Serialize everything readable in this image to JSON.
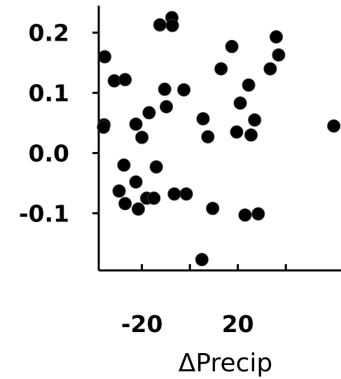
{
  "chart_data": {
    "type": "scatter",
    "title": "",
    "xlabel": "ΔPrecip",
    "ylabel": "",
    "xlim": [
      -38,
      63
    ],
    "ylim": [
      -0.195,
      0.245
    ],
    "x_ticks": [
      -20,
      0,
      20,
      40
    ],
    "x_tick_labels": [
      "-20",
      "",
      "20",
      ""
    ],
    "y_ticks": [
      -0.1,
      0.0,
      0.1,
      0.2
    ],
    "y_tick_labels": [
      "-0.1",
      "0.0",
      "0.1",
      "0.2"
    ],
    "grid": false,
    "legend": "none",
    "marker_color": "#000000",
    "series": [
      {
        "points": [
          {
            "x": -35.5,
            "y": 0.16
          },
          {
            "x": -31.5,
            "y": 0.12
          },
          {
            "x": -27.0,
            "y": 0.122
          },
          {
            "x": -35.8,
            "y": 0.047
          },
          {
            "x": -36.0,
            "y": 0.043
          },
          {
            "x": -22.5,
            "y": 0.048
          },
          {
            "x": -20.0,
            "y": 0.026
          },
          {
            "x": -17.0,
            "y": 0.067
          },
          {
            "x": -12.5,
            "y": 0.213
          },
          {
            "x": -7.5,
            "y": 0.225
          },
          {
            "x": -7.3,
            "y": 0.212
          },
          {
            "x": -10.5,
            "y": 0.106
          },
          {
            "x": -9.8,
            "y": 0.077
          },
          {
            "x": -2.5,
            "y": 0.105
          },
          {
            "x": -27.5,
            "y": -0.02
          },
          {
            "x": -29.5,
            "y": -0.063
          },
          {
            "x": -27.0,
            "y": -0.084
          },
          {
            "x": -22.5,
            "y": -0.048
          },
          {
            "x": -21.5,
            "y": -0.093
          },
          {
            "x": -18.0,
            "y": -0.075
          },
          {
            "x": -15.0,
            "y": -0.075
          },
          {
            "x": -14.0,
            "y": -0.023
          },
          {
            "x": -6.5,
            "y": -0.068
          },
          {
            "x": -1.5,
            "y": -0.068
          },
          {
            "x": 5.0,
            "y": -0.177
          },
          {
            "x": 5.5,
            "y": 0.057
          },
          {
            "x": 7.5,
            "y": 0.027
          },
          {
            "x": 9.5,
            "y": -0.092
          },
          {
            "x": 13.0,
            "y": 0.14
          },
          {
            "x": 17.5,
            "y": 0.177
          },
          {
            "x": 21.0,
            "y": 0.083
          },
          {
            "x": 19.5,
            "y": 0.035
          },
          {
            "x": 24.5,
            "y": 0.113
          },
          {
            "x": 25.5,
            "y": 0.03
          },
          {
            "x": 27.0,
            "y": 0.055
          },
          {
            "x": 23.0,
            "y": -0.103
          },
          {
            "x": 28.5,
            "y": -0.101
          },
          {
            "x": 33.5,
            "y": 0.14
          },
          {
            "x": 36.0,
            "y": 0.193
          },
          {
            "x": 37.0,
            "y": 0.163
          },
          {
            "x": 60.0,
            "y": 0.045
          }
        ]
      }
    ]
  }
}
